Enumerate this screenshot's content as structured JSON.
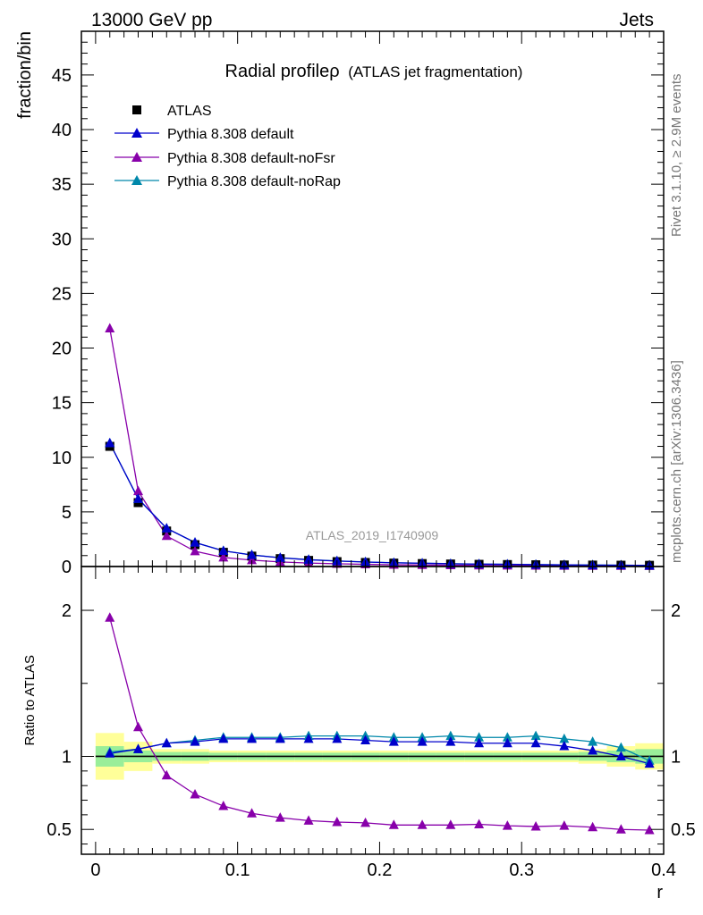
{
  "header": {
    "left": "13000 GeV pp",
    "right": "Jets"
  },
  "side": {
    "rivet": "Rivet 3.1.10, ≥ 2.9M events",
    "mcplots": "mcplots.cern.ch [arXiv:1306.3436]"
  },
  "watermark": "ATLAS_2019_I1740909",
  "chart_data": {
    "type": "line",
    "title": "Radial profile",
    "title_symbol": "ρ",
    "title_suffix": "(ATLAS jet fragmentation)",
    "xlabel": "r",
    "ylabel_top": "fraction/bin",
    "ylabel_bottom": "Ratio to ATLAS",
    "xlim": [
      -0.01,
      0.4
    ],
    "ylim_top": [
      0,
      49
    ],
    "ylim_bottom": [
      0.33,
      2.3
    ],
    "x_ticks": [
      "0",
      "0.1",
      "0.2",
      "0.3",
      "0.4"
    ],
    "y_ticks_top": [
      "0",
      "5",
      "10",
      "15",
      "20",
      "25",
      "30",
      "35",
      "40",
      "45"
    ],
    "y_ticks_bottom": [
      "0.5",
      "1",
      "2"
    ],
    "x": [
      0.01,
      0.03,
      0.05,
      0.07,
      0.09,
      0.11,
      0.13,
      0.15,
      0.17,
      0.19,
      0.21,
      0.23,
      0.25,
      0.27,
      0.29,
      0.31,
      0.33,
      0.35,
      0.37,
      0.39
    ],
    "data": {
      "name": "ATLAS",
      "values": [
        11.0,
        5.85,
        3.25,
        2.0,
        1.3,
        0.95,
        0.72,
        0.56,
        0.45,
        0.37,
        0.31,
        0.27,
        0.23,
        0.2,
        0.18,
        0.16,
        0.14,
        0.13,
        0.12,
        0.11
      ],
      "band_inner": [
        0.07,
        0.04,
        0.03,
        0.03,
        0.025,
        0.025,
        0.025,
        0.025,
        0.025,
        0.025,
        0.025,
        0.025,
        0.025,
        0.025,
        0.025,
        0.025,
        0.025,
        0.03,
        0.04,
        0.05
      ],
      "band_outer": [
        0.09,
        0.06,
        0.02,
        0.02,
        0.015,
        0.015,
        0.015,
        0.015,
        0.015,
        0.015,
        0.015,
        0.015,
        0.015,
        0.015,
        0.015,
        0.015,
        0.015,
        0.02,
        0.03,
        0.04
      ]
    },
    "series": [
      {
        "name": "Pythia 8.308 default",
        "color": "#0000cc",
        "values": [
          11.3,
          6.2,
          3.5,
          2.2,
          1.43,
          1.05,
          0.8,
          0.62,
          0.5,
          0.41,
          0.34,
          0.3,
          0.25,
          0.22,
          0.2,
          0.17,
          0.15,
          0.135,
          0.12,
          0.105
        ],
        "ratio": [
          1.02,
          1.05,
          1.09,
          1.1,
          1.12,
          1.12,
          1.12,
          1.12,
          1.12,
          1.11,
          1.1,
          1.1,
          1.1,
          1.09,
          1.09,
          1.09,
          1.07,
          1.04,
          1.0,
          0.95
        ]
      },
      {
        "name": "Pythia 8.308 default-noFsr",
        "color": "#8800aa",
        "values": [
          21.8,
          6.9,
          2.8,
          1.4,
          0.83,
          0.58,
          0.42,
          0.32,
          0.25,
          0.2,
          0.16,
          0.14,
          0.12,
          0.105,
          0.093,
          0.082,
          0.072,
          0.065,
          0.058,
          0.052
        ],
        "ratio": [
          1.95,
          1.2,
          0.87,
          0.74,
          0.66,
          0.61,
          0.58,
          0.56,
          0.55,
          0.545,
          0.53,
          0.53,
          0.53,
          0.535,
          0.525,
          0.52,
          0.525,
          0.515,
          0.5,
          0.495
        ]
      },
      {
        "name": "Pythia 8.308 default-noRap",
        "color": "#0088aa",
        "values": [
          11.3,
          6.2,
          3.5,
          2.2,
          1.44,
          1.06,
          0.81,
          0.63,
          0.51,
          0.42,
          0.35,
          0.3,
          0.26,
          0.22,
          0.2,
          0.18,
          0.155,
          0.14,
          0.125,
          0.105
        ],
        "ratio": [
          1.03,
          1.05,
          1.09,
          1.11,
          1.13,
          1.13,
          1.13,
          1.14,
          1.14,
          1.14,
          1.13,
          1.13,
          1.14,
          1.13,
          1.13,
          1.14,
          1.12,
          1.1,
          1.06,
          0.97
        ]
      }
    ],
    "legend_position": "top-left"
  }
}
